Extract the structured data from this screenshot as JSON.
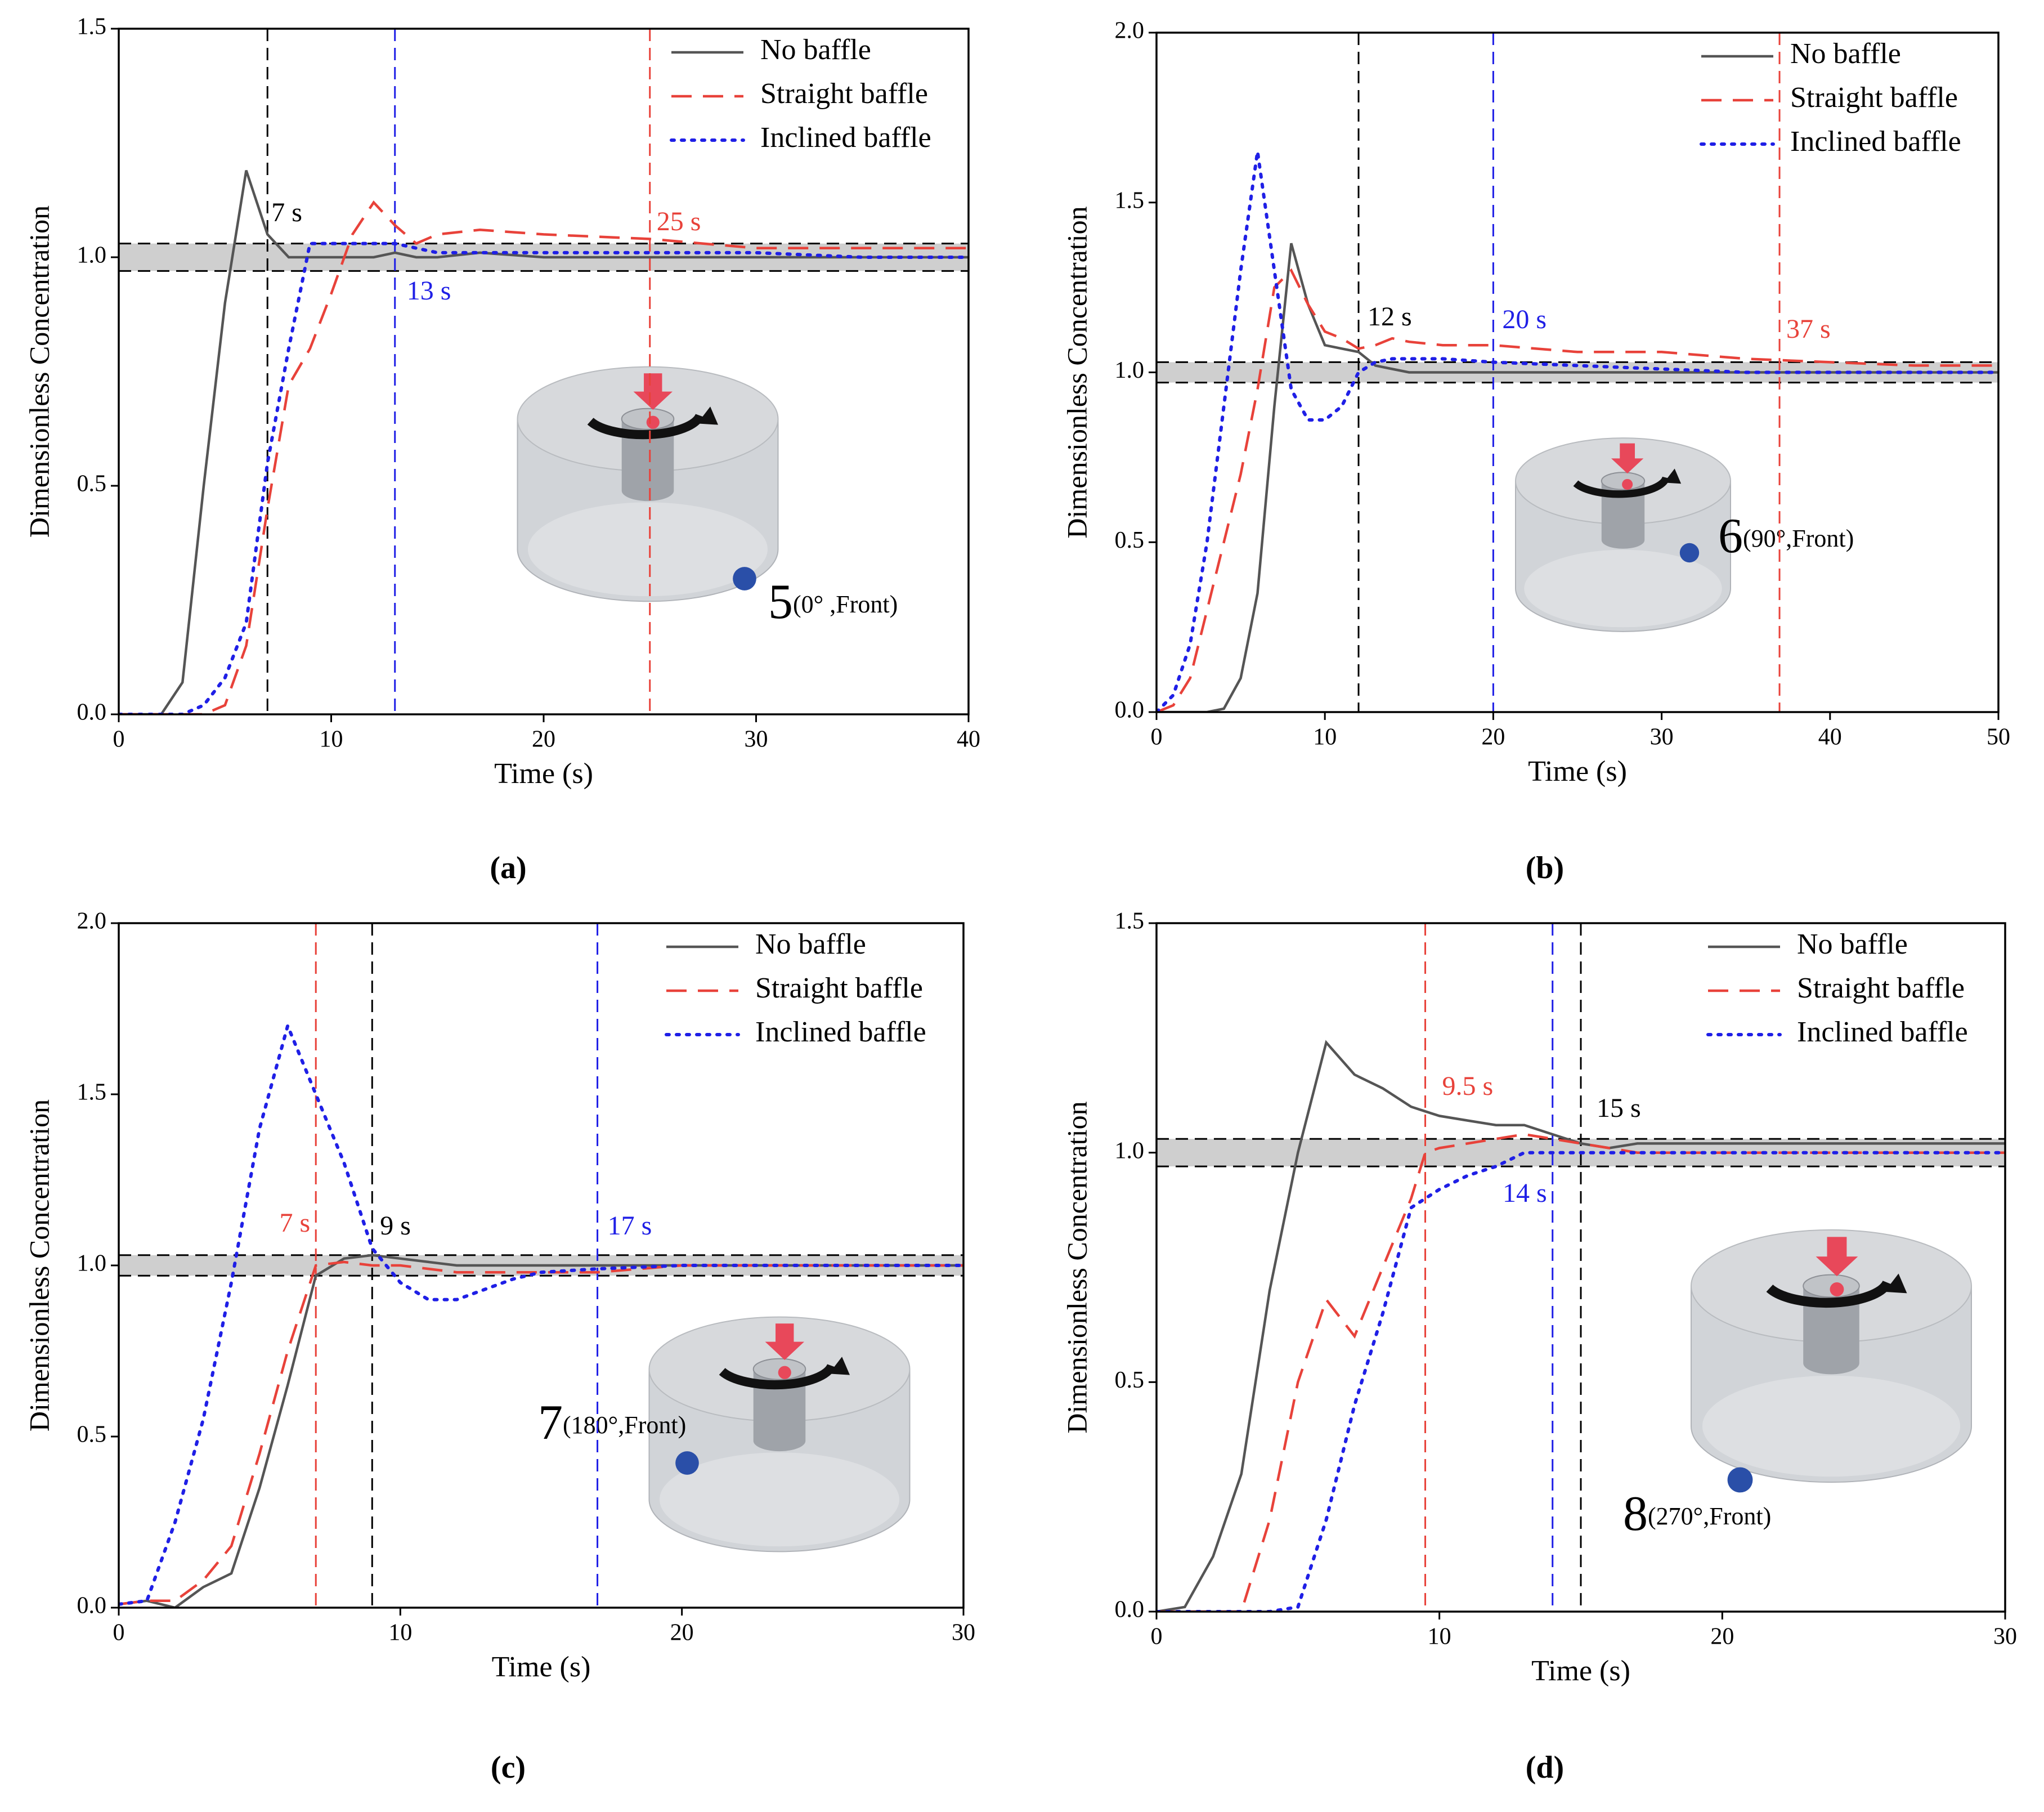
{
  "chart_data": [
    {
      "type": "line",
      "panel_label": "(a)",
      "x_label": "Time (s)",
      "y_label": "Dimensionless Concentration",
      "x": [
        0,
        1,
        2,
        3,
        4,
        5,
        6,
        7,
        8,
        9,
        10,
        11,
        12,
        13,
        14,
        15,
        17,
        20,
        25,
        30,
        35,
        40
      ],
      "series": [
        {
          "name": "No baffle",
          "color": "#555555",
          "style": "solid",
          "values": [
            0,
            0,
            0,
            0.07,
            0.5,
            0.9,
            1.19,
            1.05,
            1.0,
            1.0,
            1.0,
            1.0,
            1.0,
            1.01,
            1.0,
            1.0,
            1.01,
            1.0,
            1.0,
            1.0,
            1.0,
            1.0
          ]
        },
        {
          "name": "Straight baffle",
          "color": "#e8423a",
          "style": "dashed",
          "values": [
            0,
            0,
            0,
            0,
            0,
            0.02,
            0.15,
            0.45,
            0.72,
            0.8,
            0.92,
            1.05,
            1.12,
            1.07,
            1.03,
            1.05,
            1.06,
            1.05,
            1.04,
            1.02,
            1.02,
            1.02
          ]
        },
        {
          "name": "Inclined baffle",
          "color": "#1f1fe6",
          "style": "dotted",
          "values": [
            0,
            0,
            0,
            0,
            0.02,
            0.08,
            0.2,
            0.55,
            0.8,
            1.03,
            1.03,
            1.03,
            1.03,
            1.03,
            1.02,
            1.01,
            1.01,
            1.01,
            1.01,
            1.01,
            1.0,
            1.0
          ]
        }
      ],
      "markers": [
        {
          "x": 7,
          "color": "#000000",
          "label": "7 s"
        },
        {
          "x": 13,
          "color": "#1f1fe6",
          "label": "13 s"
        },
        {
          "x": 25,
          "color": "#e8423a",
          "label": "25 s"
        }
      ],
      "band": [
        0.97,
        1.03
      ],
      "inset": {
        "number": "5",
        "position": "(0° ,Front)"
      },
      "xlim": [
        0,
        40
      ],
      "xticks": [
        0,
        10,
        20,
        30,
        40
      ],
      "ylim": [
        0,
        1.5
      ],
      "yticks": [
        {
          "value": 0,
          "label": "0.0"
        },
        0.5,
        {
          "value": 1,
          "label": "1.0"
        },
        1.5
      ],
      "legend": "upper right"
    },
    {
      "type": "line",
      "panel_label": "(b)",
      "x_label": "Time (s)",
      "y_label": "Dimensionless Concentration",
      "x": [
        0,
        1,
        2,
        3,
        4,
        5,
        6,
        7,
        8,
        9,
        10,
        11,
        12,
        13,
        14,
        15,
        17,
        20,
        25,
        30,
        35,
        40,
        45,
        50
      ],
      "series": [
        {
          "name": "No baffle",
          "color": "#555555",
          "style": "solid",
          "values": [
            0,
            0,
            0,
            0,
            0.01,
            0.1,
            0.35,
            0.9,
            1.38,
            1.2,
            1.08,
            1.07,
            1.06,
            1.02,
            1.01,
            1.0,
            1.0,
            1.0,
            1.0,
            1.0,
            1.0,
            1.0,
            1.0,
            1.0
          ]
        },
        {
          "name": "Straight baffle",
          "color": "#e8423a",
          "style": "dashed",
          "values": [
            0,
            0.02,
            0.1,
            0.3,
            0.5,
            0.7,
            0.95,
            1.25,
            1.3,
            1.2,
            1.12,
            1.1,
            1.07,
            1.08,
            1.1,
            1.09,
            1.08,
            1.08,
            1.06,
            1.06,
            1.04,
            1.03,
            1.02,
            1.02
          ]
        },
        {
          "name": "Inclined baffle",
          "color": "#1f1fe6",
          "style": "dotted",
          "values": [
            0,
            0.05,
            0.2,
            0.5,
            0.9,
            1.3,
            1.65,
            1.3,
            0.95,
            0.86,
            0.86,
            0.9,
            1.0,
            1.03,
            1.04,
            1.04,
            1.04,
            1.03,
            1.02,
            1.01,
            1.0,
            1.0,
            1.0,
            1.0
          ]
        }
      ],
      "markers": [
        {
          "x": 12,
          "color": "#000000",
          "label": "12 s"
        },
        {
          "x": 20,
          "color": "#1f1fe6",
          "label": "20 s"
        },
        {
          "x": 37,
          "color": "#e8423a",
          "label": "37 s"
        }
      ],
      "band": [
        0.97,
        1.03
      ],
      "inset": {
        "number": "6",
        "position": "(90°,Front)"
      },
      "xlim": [
        0,
        50
      ],
      "xticks": [
        0,
        10,
        20,
        30,
        40,
        50
      ],
      "ylim": [
        0,
        2
      ],
      "yticks": [
        {
          "value": 0,
          "label": "0.0"
        },
        0.5,
        {
          "value": 1,
          "label": "1.0"
        },
        1.5,
        {
          "value": 2,
          "label": "2.0"
        }
      ],
      "legend": "upper right"
    },
    {
      "type": "line",
      "panel_label": "(c)",
      "x_label": "Time (s)",
      "y_label": "Dimensionless Concentration",
      "x": [
        0,
        1,
        2,
        3,
        4,
        5,
        6,
        7,
        8,
        9,
        10,
        11,
        12,
        13,
        14,
        15,
        17,
        20,
        25,
        30
      ],
      "series": [
        {
          "name": "No baffle",
          "color": "#555555",
          "style": "solid",
          "values": [
            0.01,
            0.02,
            0,
            0.06,
            0.1,
            0.35,
            0.65,
            0.97,
            1.02,
            1.03,
            1.02,
            1.01,
            1.0,
            1.0,
            1.0,
            1.0,
            1.0,
            1.0,
            1.0,
            1.0
          ]
        },
        {
          "name": "Straight baffle",
          "color": "#e8423a",
          "style": "dashed",
          "values": [
            0.01,
            0.02,
            0.02,
            0.08,
            0.18,
            0.45,
            0.75,
            1.0,
            1.01,
            1.0,
            1.0,
            0.99,
            0.98,
            0.98,
            0.98,
            0.98,
            0.98,
            1.0,
            1.0,
            1.0
          ]
        },
        {
          "name": "Inclined baffle",
          "color": "#1f1fe6",
          "style": "dotted",
          "values": [
            0.01,
            0.02,
            0.25,
            0.55,
            0.95,
            1.4,
            1.7,
            1.5,
            1.3,
            1.05,
            0.95,
            0.9,
            0.9,
            0.93,
            0.96,
            0.98,
            0.99,
            1.0,
            1.0,
            1.0
          ]
        }
      ],
      "markers": [
        {
          "x": 7,
          "color": "#e8423a",
          "label": "7 s"
        },
        {
          "x": 9,
          "color": "#000000",
          "label": "9 s"
        },
        {
          "x": 17,
          "color": "#1f1fe6",
          "label": "17 s"
        }
      ],
      "band": [
        0.97,
        1.03
      ],
      "inset": {
        "number": "7",
        "position": "(180°,Front)"
      },
      "xlim": [
        0,
        30
      ],
      "xticks": [
        0,
        10,
        20,
        30
      ],
      "ylim": [
        0,
        2
      ],
      "yticks": [
        {
          "value": 0,
          "label": "0.0"
        },
        0.5,
        {
          "value": 1,
          "label": "1.0"
        },
        1.5,
        {
          "value": 2,
          "label": "2.0"
        }
      ],
      "legend": "upper right"
    },
    {
      "type": "line",
      "panel_label": "(d)",
      "x_label": "Time (s)",
      "y_label": "Dimensionless Concentration",
      "x": [
        0,
        1,
        2,
        3,
        4,
        5,
        6,
        7,
        8,
        9,
        9.5,
        10,
        11,
        12,
        13,
        14,
        15,
        16,
        17,
        20,
        25,
        30
      ],
      "series": [
        {
          "name": "No baffle",
          "color": "#555555",
          "style": "solid",
          "values": [
            0,
            0.01,
            0.12,
            0.3,
            0.7,
            1.0,
            1.24,
            1.17,
            1.14,
            1.1,
            1.09,
            1.08,
            1.07,
            1.06,
            1.06,
            1.04,
            1.02,
            1.01,
            1.02,
            1.02,
            1.02,
            1.02
          ]
        },
        {
          "name": "Straight baffle",
          "color": "#e8423a",
          "style": "dashed",
          "values": [
            0,
            0,
            0,
            0,
            0.2,
            0.5,
            0.68,
            0.6,
            0.75,
            0.9,
            1.0,
            1.01,
            1.02,
            1.03,
            1.04,
            1.03,
            1.02,
            1.01,
            1.0,
            1.0,
            1.0,
            1.0
          ]
        },
        {
          "name": "Inclined baffle",
          "color": "#1f1fe6",
          "style": "dotted",
          "values": [
            0,
            0,
            0,
            0,
            0,
            0.01,
            0.2,
            0.45,
            0.65,
            0.88,
            0.9,
            0.92,
            0.95,
            0.97,
            1.0,
            1.0,
            1.0,
            1.0,
            1.0,
            1.0,
            1.0,
            1.0
          ]
        }
      ],
      "markers": [
        {
          "x": 9.5,
          "color": "#e8423a",
          "label": "9.5 s"
        },
        {
          "x": 14,
          "color": "#1f1fe6",
          "label": "14 s"
        },
        {
          "x": 15,
          "color": "#000000",
          "label": "15 s"
        }
      ],
      "band": [
        0.97,
        1.03
      ],
      "inset": {
        "number": "8",
        "position": "(270°,Front)"
      },
      "xlim": [
        0,
        30
      ],
      "xticks": [
        0,
        10,
        20,
        30
      ],
      "ylim": [
        0,
        1.5
      ],
      "yticks": [
        {
          "value": 0,
          "label": "0.0"
        },
        0.5,
        {
          "value": 1,
          "label": "1.0"
        },
        1.5
      ],
      "legend": "upper right"
    }
  ]
}
